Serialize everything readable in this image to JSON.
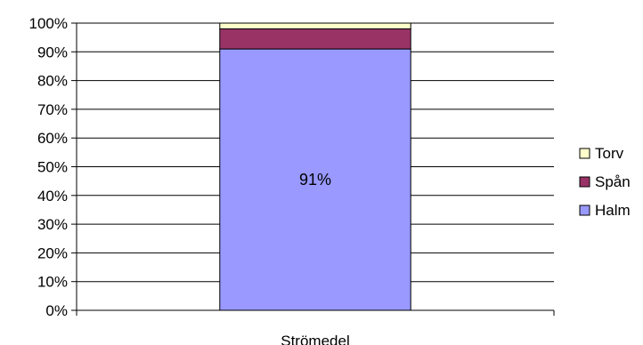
{
  "chart_data": {
    "type": "bar",
    "stacked": true,
    "percent": true,
    "categories": [
      "Strömedel"
    ],
    "series": [
      {
        "name": "Halm",
        "values": [
          91
        ],
        "color": "#9999ff"
      },
      {
        "name": "Spån",
        "values": [
          7
        ],
        "color": "#993366"
      },
      {
        "name": "Torv",
        "values": [
          2
        ],
        "color": "#ffffcc"
      }
    ],
    "ylim": [
      0,
      100
    ],
    "yticks": [
      "0%",
      "10%",
      "20%",
      "30%",
      "40%",
      "50%",
      "60%",
      "70%",
      "80%",
      "90%",
      "100%"
    ],
    "grid": true,
    "legend": "right",
    "data_labels": [
      {
        "series": "Halm",
        "category": "Strömedel",
        "text": "91%"
      }
    ]
  }
}
